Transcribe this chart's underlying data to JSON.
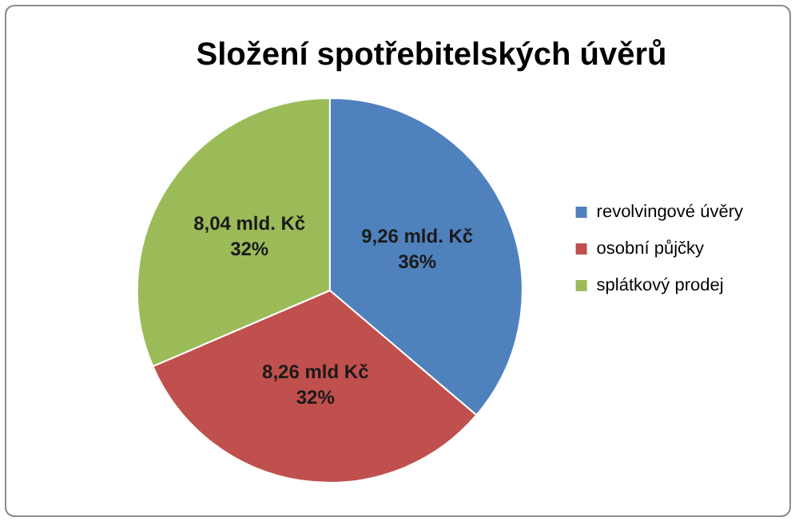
{
  "chart_data": {
    "type": "pie",
    "title": "Složení spotřebitelských úvěrů",
    "categories": [
      "revolvingové úvěry",
      "osobní půjčky",
      "splátkový prodej"
    ],
    "values": [
      9.26,
      8.26,
      8.04
    ],
    "colors": [
      "#4f81bd",
      "#c0504d",
      "#9bbb59"
    ],
    "value_labels": [
      "9,26 mld. Kč\n36%",
      "8,26 mld Kč\n32%",
      "8,04 mld. Kč\n32%"
    ],
    "legend": "right"
  }
}
